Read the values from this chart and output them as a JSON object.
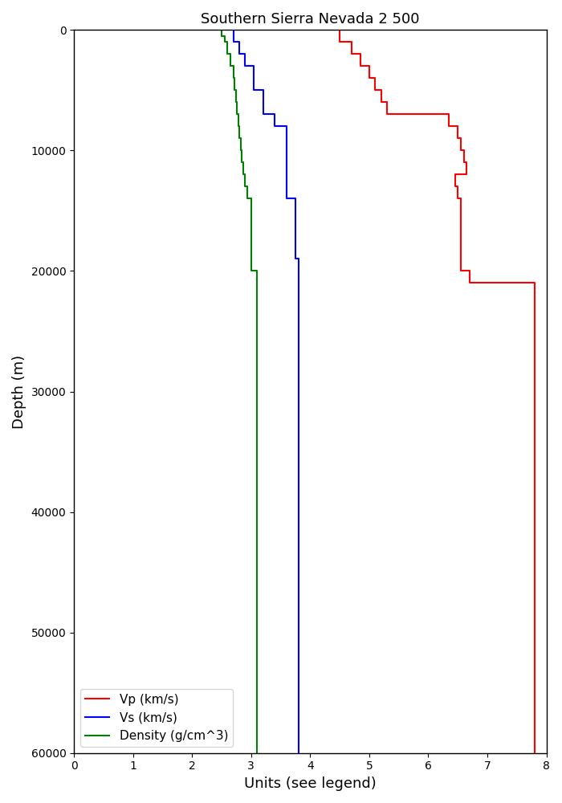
{
  "title": "Southern Sierra Nevada 2 500",
  "xlabel": "Units (see legend)",
  "ylabel": "Depth (m)",
  "xlim": [
    0,
    8
  ],
  "ylim": [
    60000,
    0
  ],
  "yticks": [
    0,
    10000,
    20000,
    30000,
    40000,
    50000,
    60000
  ],
  "xticks": [
    0,
    1,
    2,
    3,
    4,
    5,
    6,
    7,
    8
  ],
  "legend_labels": [
    "Vp (km/s)",
    "Vs (km/s)",
    "Density (g/cm^3)"
  ],
  "vp_depth": [
    0,
    1000,
    1000,
    2000,
    2000,
    3000,
    3000,
    4000,
    4000,
    5000,
    5000,
    6000,
    6000,
    7000,
    7000,
    8000,
    8000,
    9000,
    9000,
    10000,
    10000,
    11000,
    11000,
    12000,
    12000,
    13000,
    13000,
    14000,
    14000,
    20000,
    20000,
    21000,
    21000,
    30000,
    30000,
    60000
  ],
  "vp_value": [
    4.5,
    4.5,
    4.7,
    4.7,
    4.85,
    4.85,
    5.0,
    5.0,
    5.1,
    5.1,
    5.2,
    5.2,
    5.3,
    5.3,
    6.35,
    6.35,
    6.5,
    6.5,
    6.55,
    6.55,
    6.6,
    6.6,
    6.65,
    6.65,
    6.45,
    6.45,
    6.5,
    6.5,
    6.55,
    6.55,
    6.7,
    6.7,
    7.8,
    7.8,
    7.8,
    7.8
  ],
  "vs_depth": [
    0,
    1000,
    1000,
    2000,
    2000,
    3000,
    3000,
    5000,
    5000,
    7000,
    7000,
    8000,
    8000,
    14000,
    14000,
    19000,
    19000,
    30000,
    30000,
    60000
  ],
  "vs_value": [
    2.7,
    2.7,
    2.8,
    2.8,
    2.9,
    2.9,
    3.05,
    3.05,
    3.2,
    3.2,
    3.4,
    3.4,
    3.6,
    3.6,
    3.75,
    3.75,
    3.8,
    3.8,
    3.8,
    3.8
  ],
  "dn_depth": [
    0,
    500,
    500,
    1000,
    1000,
    2000,
    2000,
    3000,
    3000,
    4000,
    4000,
    5000,
    5000,
    6000,
    6000,
    7000,
    7000,
    8000,
    8000,
    9000,
    9000,
    10000,
    10000,
    11000,
    11000,
    12000,
    12000,
    13000,
    13000,
    14000,
    14000,
    20000,
    20000,
    32000,
    32000,
    60000
  ],
  "dn_value": [
    2.5,
    2.5,
    2.55,
    2.55,
    2.6,
    2.6,
    2.65,
    2.65,
    2.7,
    2.7,
    2.72,
    2.72,
    2.74,
    2.74,
    2.76,
    2.76,
    2.78,
    2.78,
    2.8,
    2.8,
    2.82,
    2.82,
    2.84,
    2.84,
    2.87,
    2.87,
    2.9,
    2.9,
    2.93,
    2.93,
    3.0,
    3.0,
    3.1,
    3.1,
    3.1,
    3.1
  ]
}
